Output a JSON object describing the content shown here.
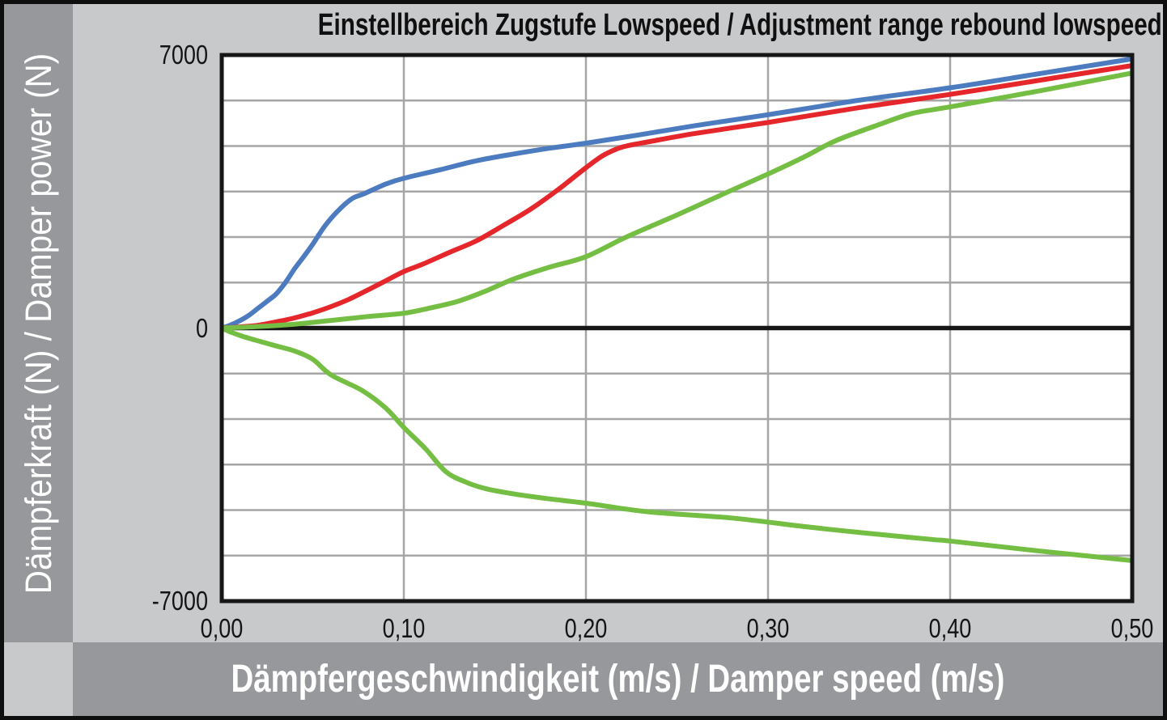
{
  "title": "Einstellbereich Zugstufe Lowspeed / Adjustment range rebound lowspeed",
  "y_axis_label": "Dämpferkraft (N) / Damper power (N)",
  "x_axis_label": "Dämpfergeschwindigkeit (m/s) / Damper speed (m/s)",
  "colors": {
    "background": "#C8C9CB",
    "band": "#97989C",
    "plot_background": "#FFFFFF",
    "gridline": "#A6A6A6",
    "axis_black": "#161616",
    "series_blue": "#4C7BC0",
    "series_red": "#E5262B",
    "series_green": "#75BE44"
  },
  "chart_data": {
    "type": "line",
    "title": "Einstellbereich Zugstufe Lowspeed / Adjustment range rebound lowspeed",
    "xlabel": "Dämpfergeschwindigkeit (m/s) / Damper speed (m/s)",
    "ylabel": "Dämpferkraft (N) / Damper power (N)",
    "xlim": [
      0,
      0.5
    ],
    "ylim": [
      -7000,
      7000
    ],
    "grid": true,
    "legend_position": "none",
    "x_gridlines": [
      0.1,
      0.2,
      0.3,
      0.4
    ],
    "y_gridline_divisions": 12,
    "x_ticks": [
      {
        "value": 0.0,
        "label": "0,00"
      },
      {
        "value": 0.1,
        "label": "0,10"
      },
      {
        "value": 0.2,
        "label": "0,20"
      },
      {
        "value": 0.3,
        "label": "0,30"
      },
      {
        "value": 0.4,
        "label": "0,40"
      },
      {
        "value": 0.5,
        "label": "0,50"
      }
    ],
    "y_ticks": [
      {
        "value": 7000,
        "label": "7000"
      },
      {
        "value": 0,
        "label": "0"
      },
      {
        "value": -7000,
        "label": "-7000"
      }
    ],
    "series": [
      {
        "name": "rebound-setting-fast-blue",
        "color": "#4C7BC0",
        "points": [
          [
            0,
            0
          ],
          [
            0.005,
            80
          ],
          [
            0.01,
            190
          ],
          [
            0.015,
            330
          ],
          [
            0.02,
            510
          ],
          [
            0.025,
            690
          ],
          [
            0.03,
            880
          ],
          [
            0.035,
            1170
          ],
          [
            0.04,
            1520
          ],
          [
            0.045,
            1830
          ],
          [
            0.05,
            2150
          ],
          [
            0.057,
            2640
          ],
          [
            0.065,
            3060
          ],
          [
            0.072,
            3330
          ],
          [
            0.078,
            3440
          ],
          [
            0.09,
            3690
          ],
          [
            0.1,
            3840
          ],
          [
            0.12,
            4060
          ],
          [
            0.14,
            4290
          ],
          [
            0.16,
            4460
          ],
          [
            0.18,
            4610
          ],
          [
            0.2,
            4740
          ],
          [
            0.23,
            4960
          ],
          [
            0.26,
            5190
          ],
          [
            0.3,
            5470
          ],
          [
            0.35,
            5840
          ],
          [
            0.4,
            6160
          ],
          [
            0.45,
            6530
          ],
          [
            0.5,
            6900
          ]
        ]
      },
      {
        "name": "rebound-setting-medium-red",
        "color": "#E5262B",
        "points": [
          [
            0,
            0
          ],
          [
            0.01,
            30
          ],
          [
            0.02,
            70
          ],
          [
            0.03,
            160
          ],
          [
            0.04,
            260
          ],
          [
            0.05,
            390
          ],
          [
            0.06,
            550
          ],
          [
            0.07,
            740
          ],
          [
            0.08,
            970
          ],
          [
            0.09,
            1210
          ],
          [
            0.1,
            1450
          ],
          [
            0.11,
            1630
          ],
          [
            0.125,
            1940
          ],
          [
            0.14,
            2240
          ],
          [
            0.155,
            2640
          ],
          [
            0.17,
            3060
          ],
          [
            0.185,
            3560
          ],
          [
            0.2,
            4110
          ],
          [
            0.21,
            4440
          ],
          [
            0.22,
            4640
          ],
          [
            0.235,
            4780
          ],
          [
            0.26,
            4990
          ],
          [
            0.3,
            5270
          ],
          [
            0.35,
            5650
          ],
          [
            0.4,
            5990
          ],
          [
            0.45,
            6360
          ],
          [
            0.5,
            6730
          ]
        ]
      },
      {
        "name": "rebound-setting-slow-green",
        "color": "#75BE44",
        "points": [
          [
            0,
            0
          ],
          [
            0.02,
            40
          ],
          [
            0.04,
            100
          ],
          [
            0.06,
            195
          ],
          [
            0.08,
            295
          ],
          [
            0.1,
            380
          ],
          [
            0.115,
            520
          ],
          [
            0.13,
            690
          ],
          [
            0.145,
            950
          ],
          [
            0.16,
            1250
          ],
          [
            0.18,
            1560
          ],
          [
            0.2,
            1830
          ],
          [
            0.222,
            2330
          ],
          [
            0.25,
            2900
          ],
          [
            0.277,
            3470
          ],
          [
            0.3,
            3950
          ],
          [
            0.32,
            4390
          ],
          [
            0.337,
            4800
          ],
          [
            0.36,
            5200
          ],
          [
            0.379,
            5500
          ],
          [
            0.4,
            5670
          ],
          [
            0.45,
            6090
          ],
          [
            0.5,
            6540
          ]
        ]
      },
      {
        "name": "compression-green-negative",
        "color": "#75BE44",
        "points": [
          [
            0,
            0
          ],
          [
            0.005,
            -105
          ],
          [
            0.012,
            -220
          ],
          [
            0.02,
            -330
          ],
          [
            0.03,
            -460
          ],
          [
            0.04,
            -590
          ],
          [
            0.05,
            -800
          ],
          [
            0.06,
            -1200
          ],
          [
            0.077,
            -1600
          ],
          [
            0.09,
            -2050
          ],
          [
            0.1,
            -2550
          ],
          [
            0.112,
            -3100
          ],
          [
            0.123,
            -3680
          ],
          [
            0.134,
            -3950
          ],
          [
            0.145,
            -4120
          ],
          [
            0.16,
            -4250
          ],
          [
            0.18,
            -4380
          ],
          [
            0.2,
            -4490
          ],
          [
            0.234,
            -4710
          ],
          [
            0.28,
            -4870
          ],
          [
            0.32,
            -5090
          ],
          [
            0.35,
            -5240
          ],
          [
            0.39,
            -5420
          ],
          [
            0.4,
            -5460
          ],
          [
            0.45,
            -5720
          ],
          [
            0.5,
            -5960
          ]
        ]
      }
    ]
  }
}
